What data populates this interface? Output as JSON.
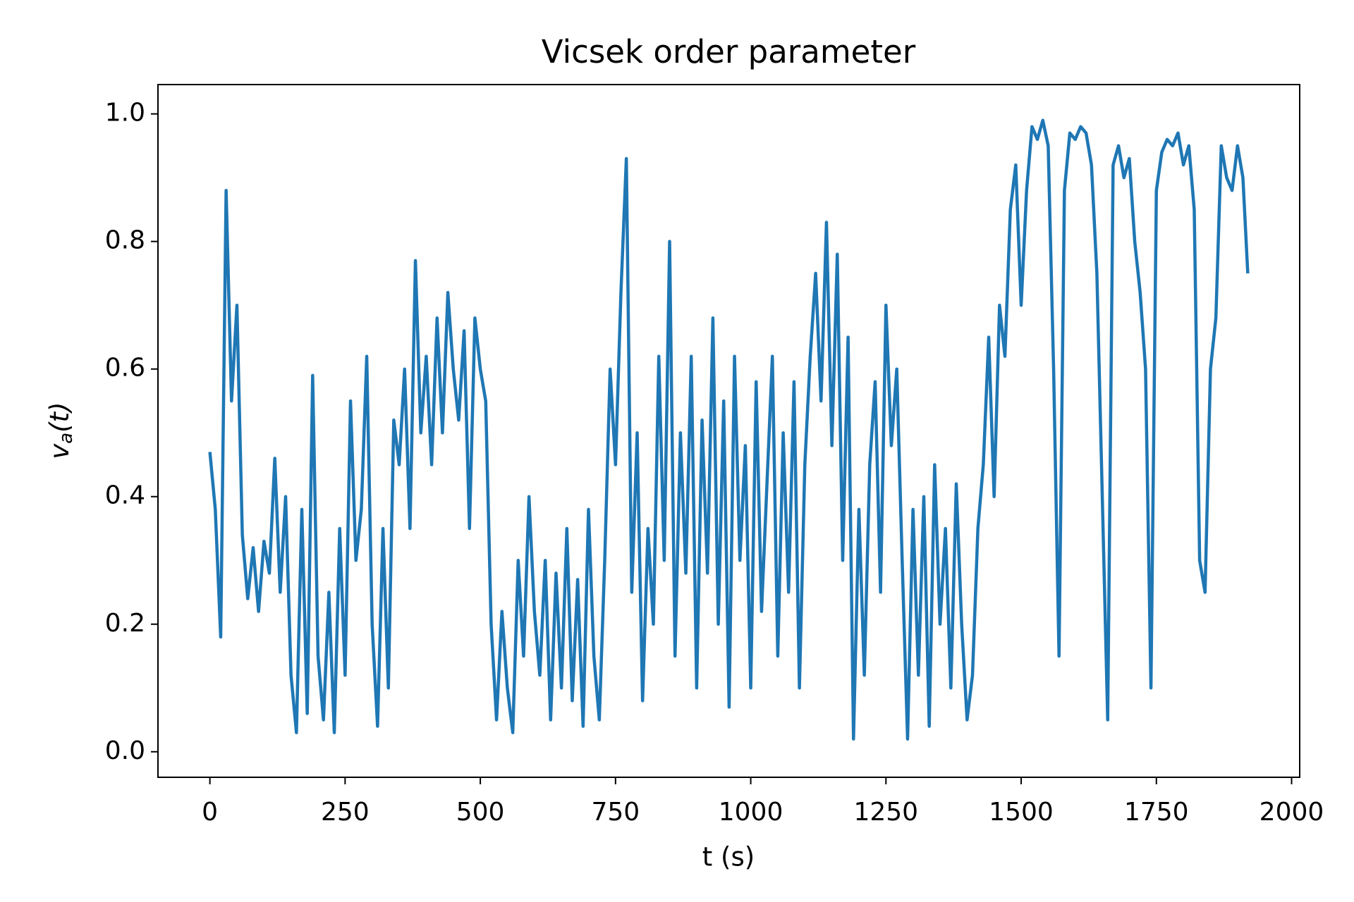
{
  "chart_data": {
    "type": "line",
    "title": "Vicsek order parameter",
    "x_label": "t (s)",
    "y_label": {
      "base": "v",
      "sub": "a",
      "rest": "(t)"
    },
    "xlim": [
      -96,
      2015
    ],
    "ylim": [
      -0.04,
      1.046
    ],
    "xticks": [
      0,
      250,
      500,
      750,
      1000,
      1250,
      1500,
      1750,
      2000
    ],
    "yticks": [
      {
        "value": 0,
        "label": "0.0"
      },
      0.2,
      0.4,
      0.6,
      0.8,
      {
        "value": 1,
        "label": "1.0"
      }
    ],
    "x": [
      0,
      10,
      20,
      30,
      40,
      50,
      60,
      70,
      80,
      90,
      100,
      110,
      120,
      130,
      140,
      150,
      160,
      170,
      180,
      190,
      200,
      210,
      220,
      230,
      240,
      250,
      260,
      270,
      280,
      290,
      300,
      310,
      320,
      330,
      340,
      350,
      360,
      370,
      380,
      390,
      400,
      410,
      420,
      430,
      440,
      450,
      460,
      470,
      480,
      490,
      500,
      510,
      520,
      530,
      540,
      550,
      560,
      570,
      580,
      590,
      600,
      610,
      620,
      630,
      640,
      650,
      660,
      670,
      680,
      690,
      700,
      710,
      720,
      730,
      740,
      750,
      760,
      770,
      780,
      790,
      800,
      810,
      820,
      830,
      840,
      850,
      860,
      870,
      880,
      890,
      900,
      910,
      920,
      930,
      940,
      950,
      960,
      970,
      980,
      990,
      1000,
      1010,
      1020,
      1030,
      1040,
      1050,
      1060,
      1070,
      1080,
      1090,
      1100,
      1110,
      1120,
      1130,
      1140,
      1150,
      1160,
      1170,
      1180,
      1190,
      1200,
      1210,
      1220,
      1230,
      1240,
      1250,
      1260,
      1270,
      1280,
      1290,
      1300,
      1310,
      1320,
      1330,
      1340,
      1350,
      1360,
      1370,
      1380,
      1390,
      1400,
      1410,
      1420,
      1430,
      1440,
      1450,
      1460,
      1470,
      1480,
      1490,
      1500,
      1510,
      1520,
      1530,
      1540,
      1550,
      1560,
      1570,
      1580,
      1590,
      1600,
      1610,
      1620,
      1630,
      1640,
      1650,
      1660,
      1670,
      1680,
      1690,
      1700,
      1710,
      1720,
      1730,
      1740,
      1750,
      1760,
      1770,
      1780,
      1790,
      1800,
      1810,
      1820,
      1830,
      1840,
      1850,
      1860,
      1870,
      1880,
      1890,
      1900,
      1910,
      1919
    ],
    "series": [
      {
        "color": "#1f77b4",
        "values": [
          0.47,
          0.38,
          0.18,
          0.88,
          0.55,
          0.7,
          0.34,
          0.24,
          0.32,
          0.22,
          0.33,
          0.28,
          0.46,
          0.25,
          0.4,
          0.12,
          0.03,
          0.38,
          0.06,
          0.59,
          0.15,
          0.05,
          0.25,
          0.03,
          0.35,
          0.12,
          0.55,
          0.3,
          0.38,
          0.62,
          0.2,
          0.04,
          0.35,
          0.1,
          0.52,
          0.45,
          0.6,
          0.35,
          0.77,
          0.5,
          0.62,
          0.45,
          0.68,
          0.5,
          0.72,
          0.6,
          0.52,
          0.66,
          0.35,
          0.68,
          0.6,
          0.55,
          0.2,
          0.05,
          0.22,
          0.1,
          0.03,
          0.3,
          0.15,
          0.4,
          0.22,
          0.12,
          0.3,
          0.05,
          0.28,
          0.1,
          0.35,
          0.08,
          0.27,
          0.04,
          0.38,
          0.15,
          0.05,
          0.3,
          0.6,
          0.45,
          0.72,
          0.93,
          0.25,
          0.5,
          0.08,
          0.35,
          0.2,
          0.62,
          0.3,
          0.8,
          0.15,
          0.5,
          0.28,
          0.62,
          0.1,
          0.52,
          0.28,
          0.68,
          0.2,
          0.55,
          0.07,
          0.62,
          0.3,
          0.48,
          0.1,
          0.58,
          0.22,
          0.42,
          0.62,
          0.15,
          0.5,
          0.25,
          0.58,
          0.1,
          0.45,
          0.62,
          0.75,
          0.55,
          0.83,
          0.48,
          0.78,
          0.3,
          0.65,
          0.02,
          0.38,
          0.12,
          0.45,
          0.58,
          0.25,
          0.7,
          0.48,
          0.6,
          0.3,
          0.02,
          0.38,
          0.12,
          0.4,
          0.04,
          0.45,
          0.2,
          0.35,
          0.1,
          0.42,
          0.2,
          0.05,
          0.12,
          0.35,
          0.45,
          0.65,
          0.4,
          0.7,
          0.62,
          0.85,
          0.92,
          0.7,
          0.88,
          0.98,
          0.96,
          0.99,
          0.95,
          0.6,
          0.15,
          0.88,
          0.97,
          0.96,
          0.98,
          0.97,
          0.92,
          0.75,
          0.4,
          0.05,
          0.92,
          0.95,
          0.9,
          0.93,
          0.8,
          0.72,
          0.6,
          0.1,
          0.88,
          0.94,
          0.96,
          0.95,
          0.97,
          0.92,
          0.95,
          0.85,
          0.3,
          0.25,
          0.6,
          0.68,
          0.95,
          0.9,
          0.88,
          0.95,
          0.9,
          0.75
        ]
      }
    ]
  }
}
